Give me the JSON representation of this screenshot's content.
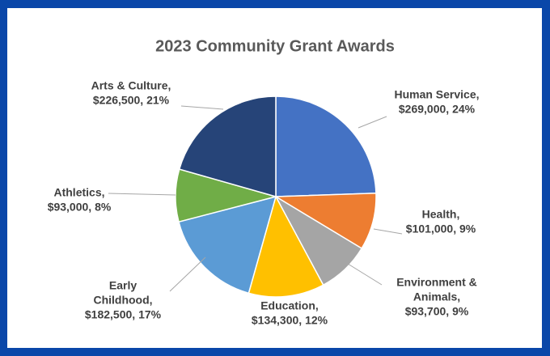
{
  "chart_data": {
    "type": "pie",
    "title": "2023 Community Grant Awards",
    "values": [
      269000,
      101000,
      93700,
      134300,
      182500,
      93000,
      226500
    ],
    "value_labels": [
      [
        "Human Service,",
        "$269,000, 24%"
      ],
      [
        "Health,",
        "$101,000, 9%"
      ],
      [
        "Environment &",
        "Animals,",
        "$93,700, 9%"
      ],
      [
        "Education,",
        "$134,300, 12%"
      ],
      [
        "Early",
        "Childhood,",
        "$182,500, 17%"
      ],
      [
        "Athletics,",
        "$93,000, 8%"
      ],
      [
        "Arts & Culture,",
        "$226,500, 21%"
      ]
    ],
    "colors": [
      "#4472c4",
      "#ed7d31",
      "#a5a5a5",
      "#ffc000",
      "#5b9bd5",
      "#70ad47",
      "#264478"
    ]
  }
}
